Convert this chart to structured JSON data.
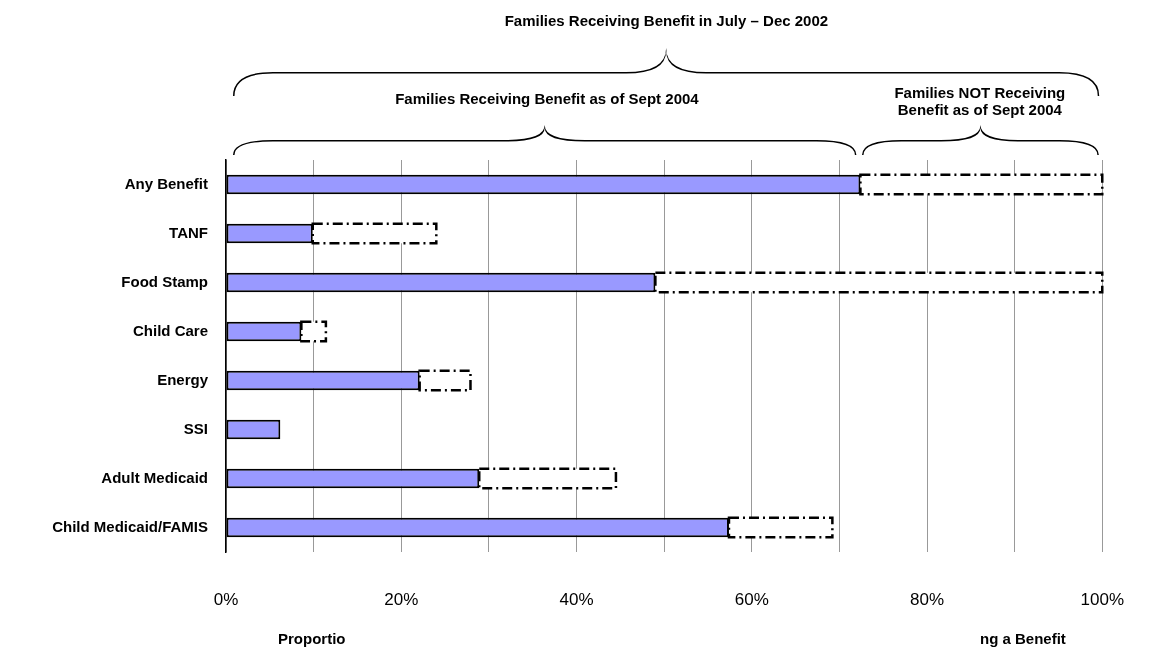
{
  "chart_data": {
    "type": "bar",
    "orientation": "horizontal",
    "stacked": true,
    "title": "Families Receiving Benefit in July – Dec 2002",
    "annotations": [
      "Families Receiving Benefit as of Sept 2004",
      "Families NOT Receiving Benefit as of Sept 2004",
      "Proportio",
      "ng a Benefit"
    ],
    "categories": [
      "Any Benefit",
      "TANF",
      "Food Stamp",
      "Child Care",
      "Energy",
      "SSI",
      "Adult Medicaid",
      "Child Medicaid/FAMIS"
    ],
    "series": [
      {
        "color": "#9999ff",
        "values": [
          72.4,
          9.9,
          49,
          8.6,
          22.1,
          6.2,
          28.9,
          57.4
        ]
      },
      {
        "color": "#ffffff",
        "line_style": "dashed",
        "values": [
          27.6,
          14.1,
          51,
          2.8,
          5.8,
          null,
          15.6,
          11.8
        ]
      }
    ],
    "xlim": [
      0,
      100
    ],
    "xticks": [
      {
        "value": 0,
        "label": "0%"
      },
      {
        "value": 10,
        "label": null
      },
      {
        "value": 20,
        "label": "20%"
      },
      {
        "value": 30,
        "label": null
      },
      {
        "value": 40,
        "label": "40%"
      },
      {
        "value": 50,
        "label": null
      },
      {
        "value": 60,
        "label": "60%"
      },
      {
        "value": 70,
        "label": null
      },
      {
        "value": 80,
        "label": "80%"
      },
      {
        "value": 90,
        "label": null
      },
      {
        "value": 100,
        "label": "100%"
      }
    ],
    "grid": "x"
  }
}
